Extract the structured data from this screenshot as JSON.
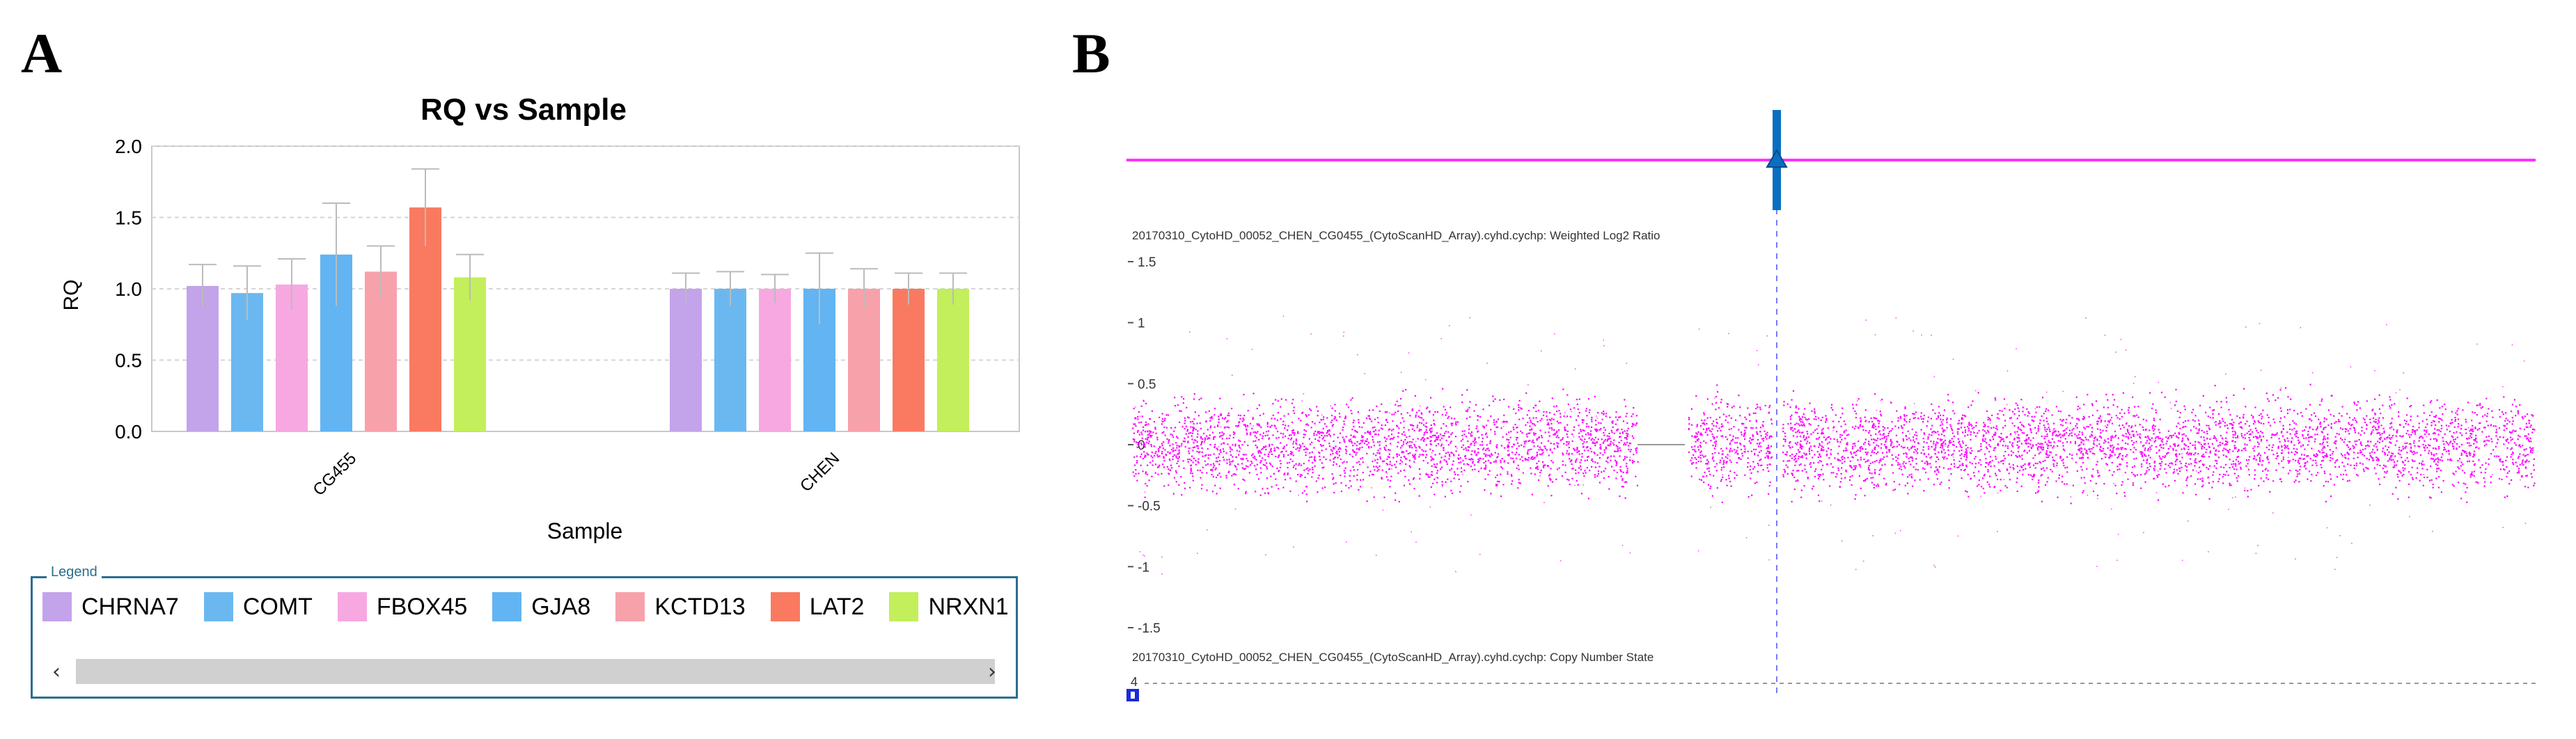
{
  "panels": {
    "a_letter": "A",
    "b_letter": "B"
  },
  "chart_data": [
    {
      "type": "bar",
      "title": "RQ vs Sample",
      "xlabel": "Sample",
      "ylabel": "RQ",
      "ylim": [
        0,
        2.0
      ],
      "yticks": [
        "0.0",
        "0.5",
        "1.0",
        "1.5",
        "2.0"
      ],
      "grid": true,
      "categories": [
        "CG455",
        "CHEN"
      ],
      "series": [
        {
          "name": "CHRNA7",
          "color": "#c3a3ea",
          "values": [
            1.02,
            1.0
          ],
          "errors": [
            0.15,
            0.11
          ]
        },
        {
          "name": "COMT",
          "color": "#6bb8f0",
          "values": [
            0.97,
            1.0
          ],
          "errors": [
            0.19,
            0.12
          ]
        },
        {
          "name": "FBOX45",
          "color": "#f7a8e1",
          "values": [
            1.03,
            1.0
          ],
          "errors": [
            0.18,
            0.1
          ]
        },
        {
          "name": "GJA8",
          "color": "#62b4f2",
          "values": [
            1.24,
            1.0
          ],
          "errors": [
            0.36,
            0.25
          ]
        },
        {
          "name": "KCTD13",
          "color": "#f7a1ab",
          "values": [
            1.12,
            1.0
          ],
          "errors": [
            0.18,
            0.14
          ]
        },
        {
          "name": "LAT2",
          "color": "#f97a60",
          "values": [
            1.57,
            1.0
          ],
          "errors": [
            0.27,
            0.11
          ]
        },
        {
          "name": "NRXN1",
          "color": "#c2ef5b",
          "values": [
            1.08,
            1.0
          ],
          "errors": [
            0.16,
            0.11
          ]
        }
      ],
      "legend": {
        "title": "Legend",
        "placement": "bottom"
      }
    },
    {
      "type": "scatter",
      "track1_label": "20170310_CytoHD_00052_CHEN_CG0455_(CytoScanHD_Array).cyhd.cychp: Weighted Log2 Ratio",
      "track2_label": "20170310_CytoHD_00052_CHEN_CG0455_(CytoScanHD_Array).cyhd.cychp: Copy Number State",
      "yticks": [
        "1.5",
        "1",
        "0.5",
        "0",
        "-0.5",
        "-1",
        "-1.5"
      ],
      "ylim": [
        -1.5,
        1.5
      ],
      "baseline": 0,
      "series_color": "#ff00ff",
      "copy_number_tick": "4",
      "marker_icon": "arrow-up-icon",
      "corner_icon": "chromosome-icon"
    }
  ]
}
